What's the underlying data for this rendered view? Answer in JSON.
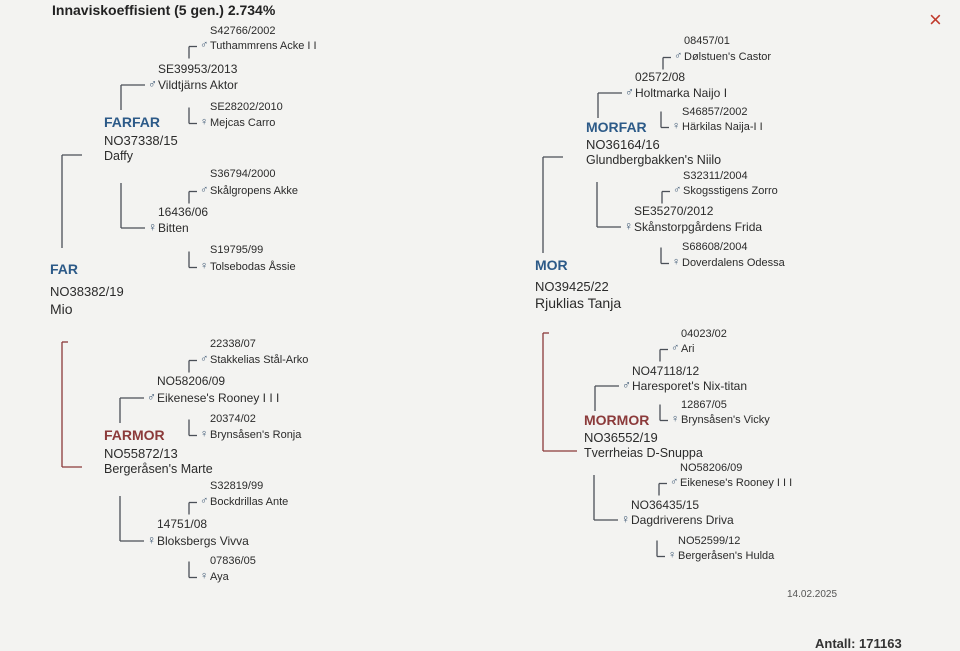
{
  "header": {
    "title": "Innaviskoeffisient (5 gen.) 2.734%",
    "close": "×"
  },
  "nodes": [
    {
      "role": "FAR",
      "reg": "NO38382/19",
      "name": "Mio"
    },
    {
      "role": "MOR",
      "reg": "NO39425/22",
      "name": "Rjuklias Tanja"
    },
    {
      "role": "FARFAR",
      "reg": "NO37338/15",
      "name": "Daffy"
    },
    {
      "role": "FARMOR",
      "reg": "NO55872/13",
      "name": "Bergeråsen's Marte"
    },
    {
      "role": "MORFAR",
      "reg": "NO36164/16",
      "name": "Glundbergbakken's Niilo"
    },
    {
      "role": "MORMOR",
      "reg": "NO36552/19",
      "name": "Tverrheias D-Snuppa"
    },
    {
      "reg": "SE39953/2013",
      "sex": "♂",
      "name": "Vildtjärns Aktor"
    },
    {
      "reg": "16436/06",
      "sex": "♀",
      "name": "Bitten"
    },
    {
      "reg": "NO58206/09",
      "sex": "♂",
      "name": "Eikenese's Rooney I I I"
    },
    {
      "reg": "14751/08",
      "sex": "♀",
      "name": "Bloksbergs Vivva"
    },
    {
      "reg": "02572/08",
      "sex": "♂",
      "name": "Holtmarka Naijo I"
    },
    {
      "reg": "SE35270/2012",
      "sex": "♀",
      "name": "Skånstorpgårdens Frida"
    },
    {
      "reg": "NO47118/12",
      "sex": "♂",
      "name": "Haresporet's Nix-titan"
    },
    {
      "reg": "NO36435/15",
      "sex": "♀",
      "name": "Dagdriverens Driva"
    },
    {
      "reg": "S42766/2002",
      "sex": "♂",
      "name": "Tuthammrens Acke I I"
    },
    {
      "reg": "SE28202/2010",
      "sex": "♀",
      "name": "Mejcas Carro"
    },
    {
      "reg": "S36794/2000",
      "sex": "♂",
      "name": "Skålgropens Akke"
    },
    {
      "reg": "S19795/99",
      "sex": "♀",
      "name": "Tolsebodas Åssie"
    },
    {
      "reg": "22338/07",
      "sex": "♂",
      "name": "Stakkelias Stål-Arko"
    },
    {
      "reg": "20374/02",
      "sex": "♀",
      "name": "Brynsåsen's Ronja"
    },
    {
      "reg": "S32819/99",
      "sex": "♂",
      "name": "Bockdrillas Ante"
    },
    {
      "reg": "07836/05",
      "sex": "♀",
      "name": "Aya"
    },
    {
      "reg": "08457/01",
      "sex": "♂",
      "name": "Dølstuen's Castor"
    },
    {
      "reg": "S46857/2002",
      "sex": "♀",
      "name": "Härkilas Naija-I I"
    },
    {
      "reg": "S32311/2004",
      "sex": "♂",
      "name": "Skogsstigens Zorro"
    },
    {
      "reg": "S68608/2004",
      "sex": "♀",
      "name": "Doverdalens Odessa"
    },
    {
      "reg": "04023/02",
      "sex": "♂",
      "name": "Ari"
    },
    {
      "reg": "12867/05",
      "sex": "♀",
      "name": "Brynsåsen's Vicky"
    },
    {
      "reg": "NO58206/09",
      "sex": "♂",
      "name": "Eikenese's Rooney I I I"
    },
    {
      "reg": "NO52599/12",
      "sex": "♀",
      "name": "Bergeråsen's Hulda"
    }
  ],
  "footer": {
    "date": "14.02.2025",
    "count": "Antall: 171163"
  }
}
